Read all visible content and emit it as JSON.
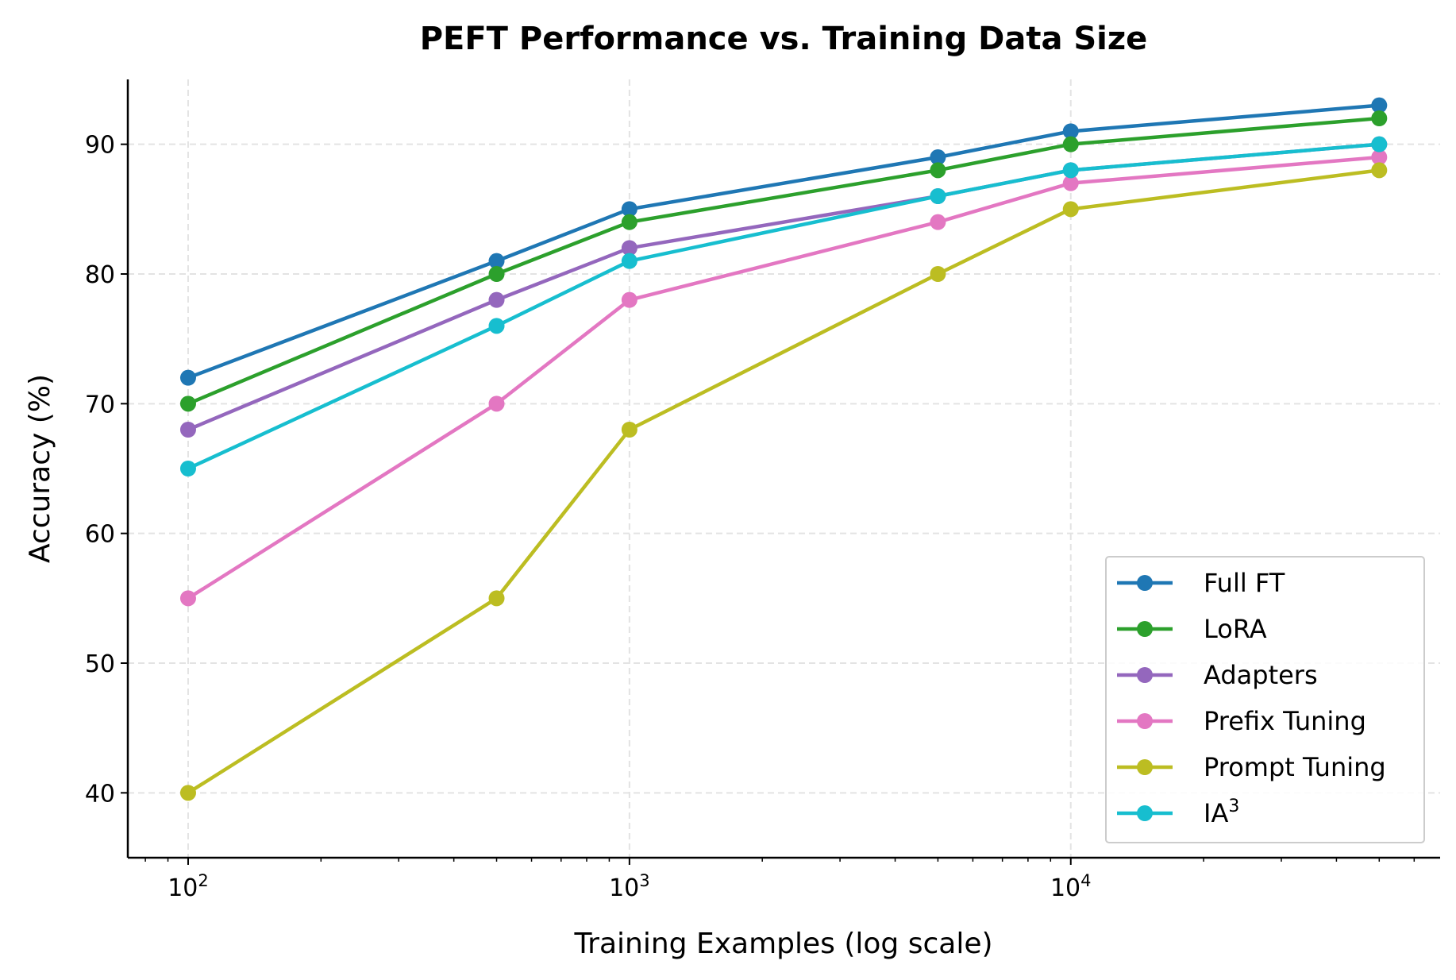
{
  "chart_data": {
    "type": "line",
    "title": "PEFT Performance vs. Training Data Size",
    "xlabel": "Training Examples (log scale)",
    "ylabel": "Accuracy (%)",
    "xscale": "log",
    "xlim": [
      73,
      68700
    ],
    "ylim": [
      35,
      95
    ],
    "xticks": [
      {
        "value": 100,
        "base": "10",
        "exp": "2"
      },
      {
        "value": 1000,
        "base": "10",
        "exp": "3"
      },
      {
        "value": 10000,
        "base": "10",
        "exp": "4"
      }
    ],
    "yticks": [
      40,
      50,
      60,
      70,
      80,
      90
    ],
    "grid": true,
    "legend_position": "lower right",
    "x": [
      100,
      500,
      1000,
      5000,
      10000,
      50000
    ],
    "series": [
      {
        "name": "Full FT",
        "color": "#1f77b4",
        "values": [
          72,
          81,
          85,
          89,
          91,
          93
        ]
      },
      {
        "name": "LoRA",
        "color": "#2ca02c",
        "values": [
          70,
          80,
          84,
          88,
          90,
          92
        ]
      },
      {
        "name": "Adapters",
        "color": "#9467bd",
        "values": [
          68,
          78,
          82,
          86,
          88,
          90
        ]
      },
      {
        "name": "Prefix Tuning",
        "color": "#e377c2",
        "values": [
          55,
          70,
          78,
          84,
          87,
          89
        ]
      },
      {
        "name": "Prompt Tuning",
        "color": "#bcbd22",
        "values": [
          40,
          55,
          68,
          80,
          85,
          88
        ]
      },
      {
        "name": "IA",
        "name_superscript": "3",
        "color": "#17becf",
        "values": [
          65,
          76,
          81,
          86,
          88,
          90
        ]
      }
    ]
  }
}
